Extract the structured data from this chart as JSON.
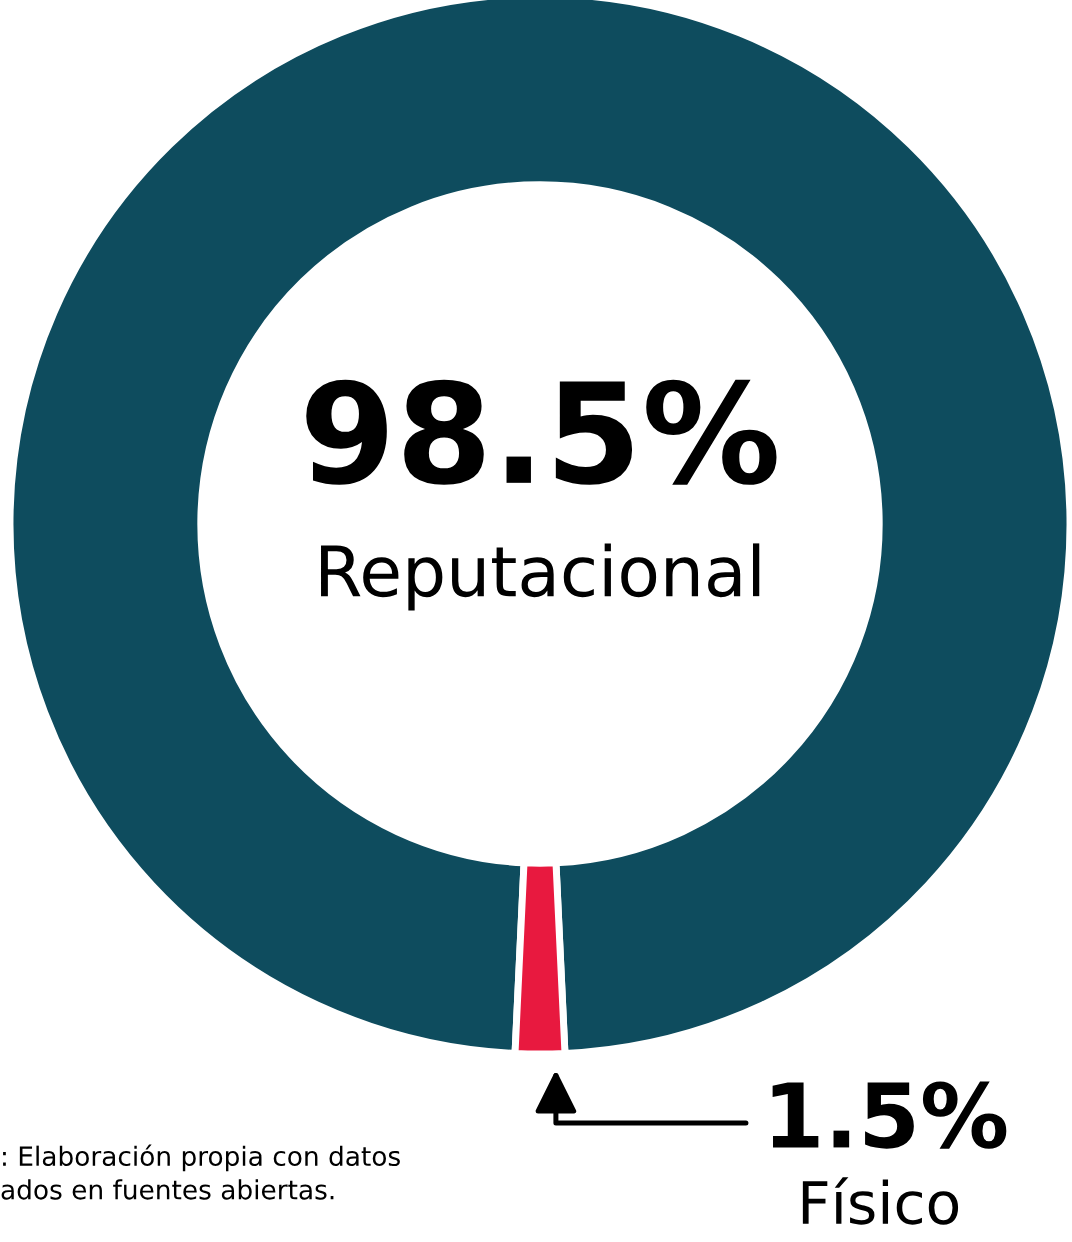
{
  "chart_data": {
    "type": "donut",
    "categories": [
      "Reputacional",
      "Físico"
    ],
    "values": [
      98.5,
      1.5
    ],
    "colors": [
      "#0e4c5e",
      "#e8193f"
    ],
    "value_labels": [
      "98.5%",
      "1.5%"
    ],
    "annotations": [
      ": Elaboración propia con datos\nados en fuentes abiertas."
    ]
  }
}
